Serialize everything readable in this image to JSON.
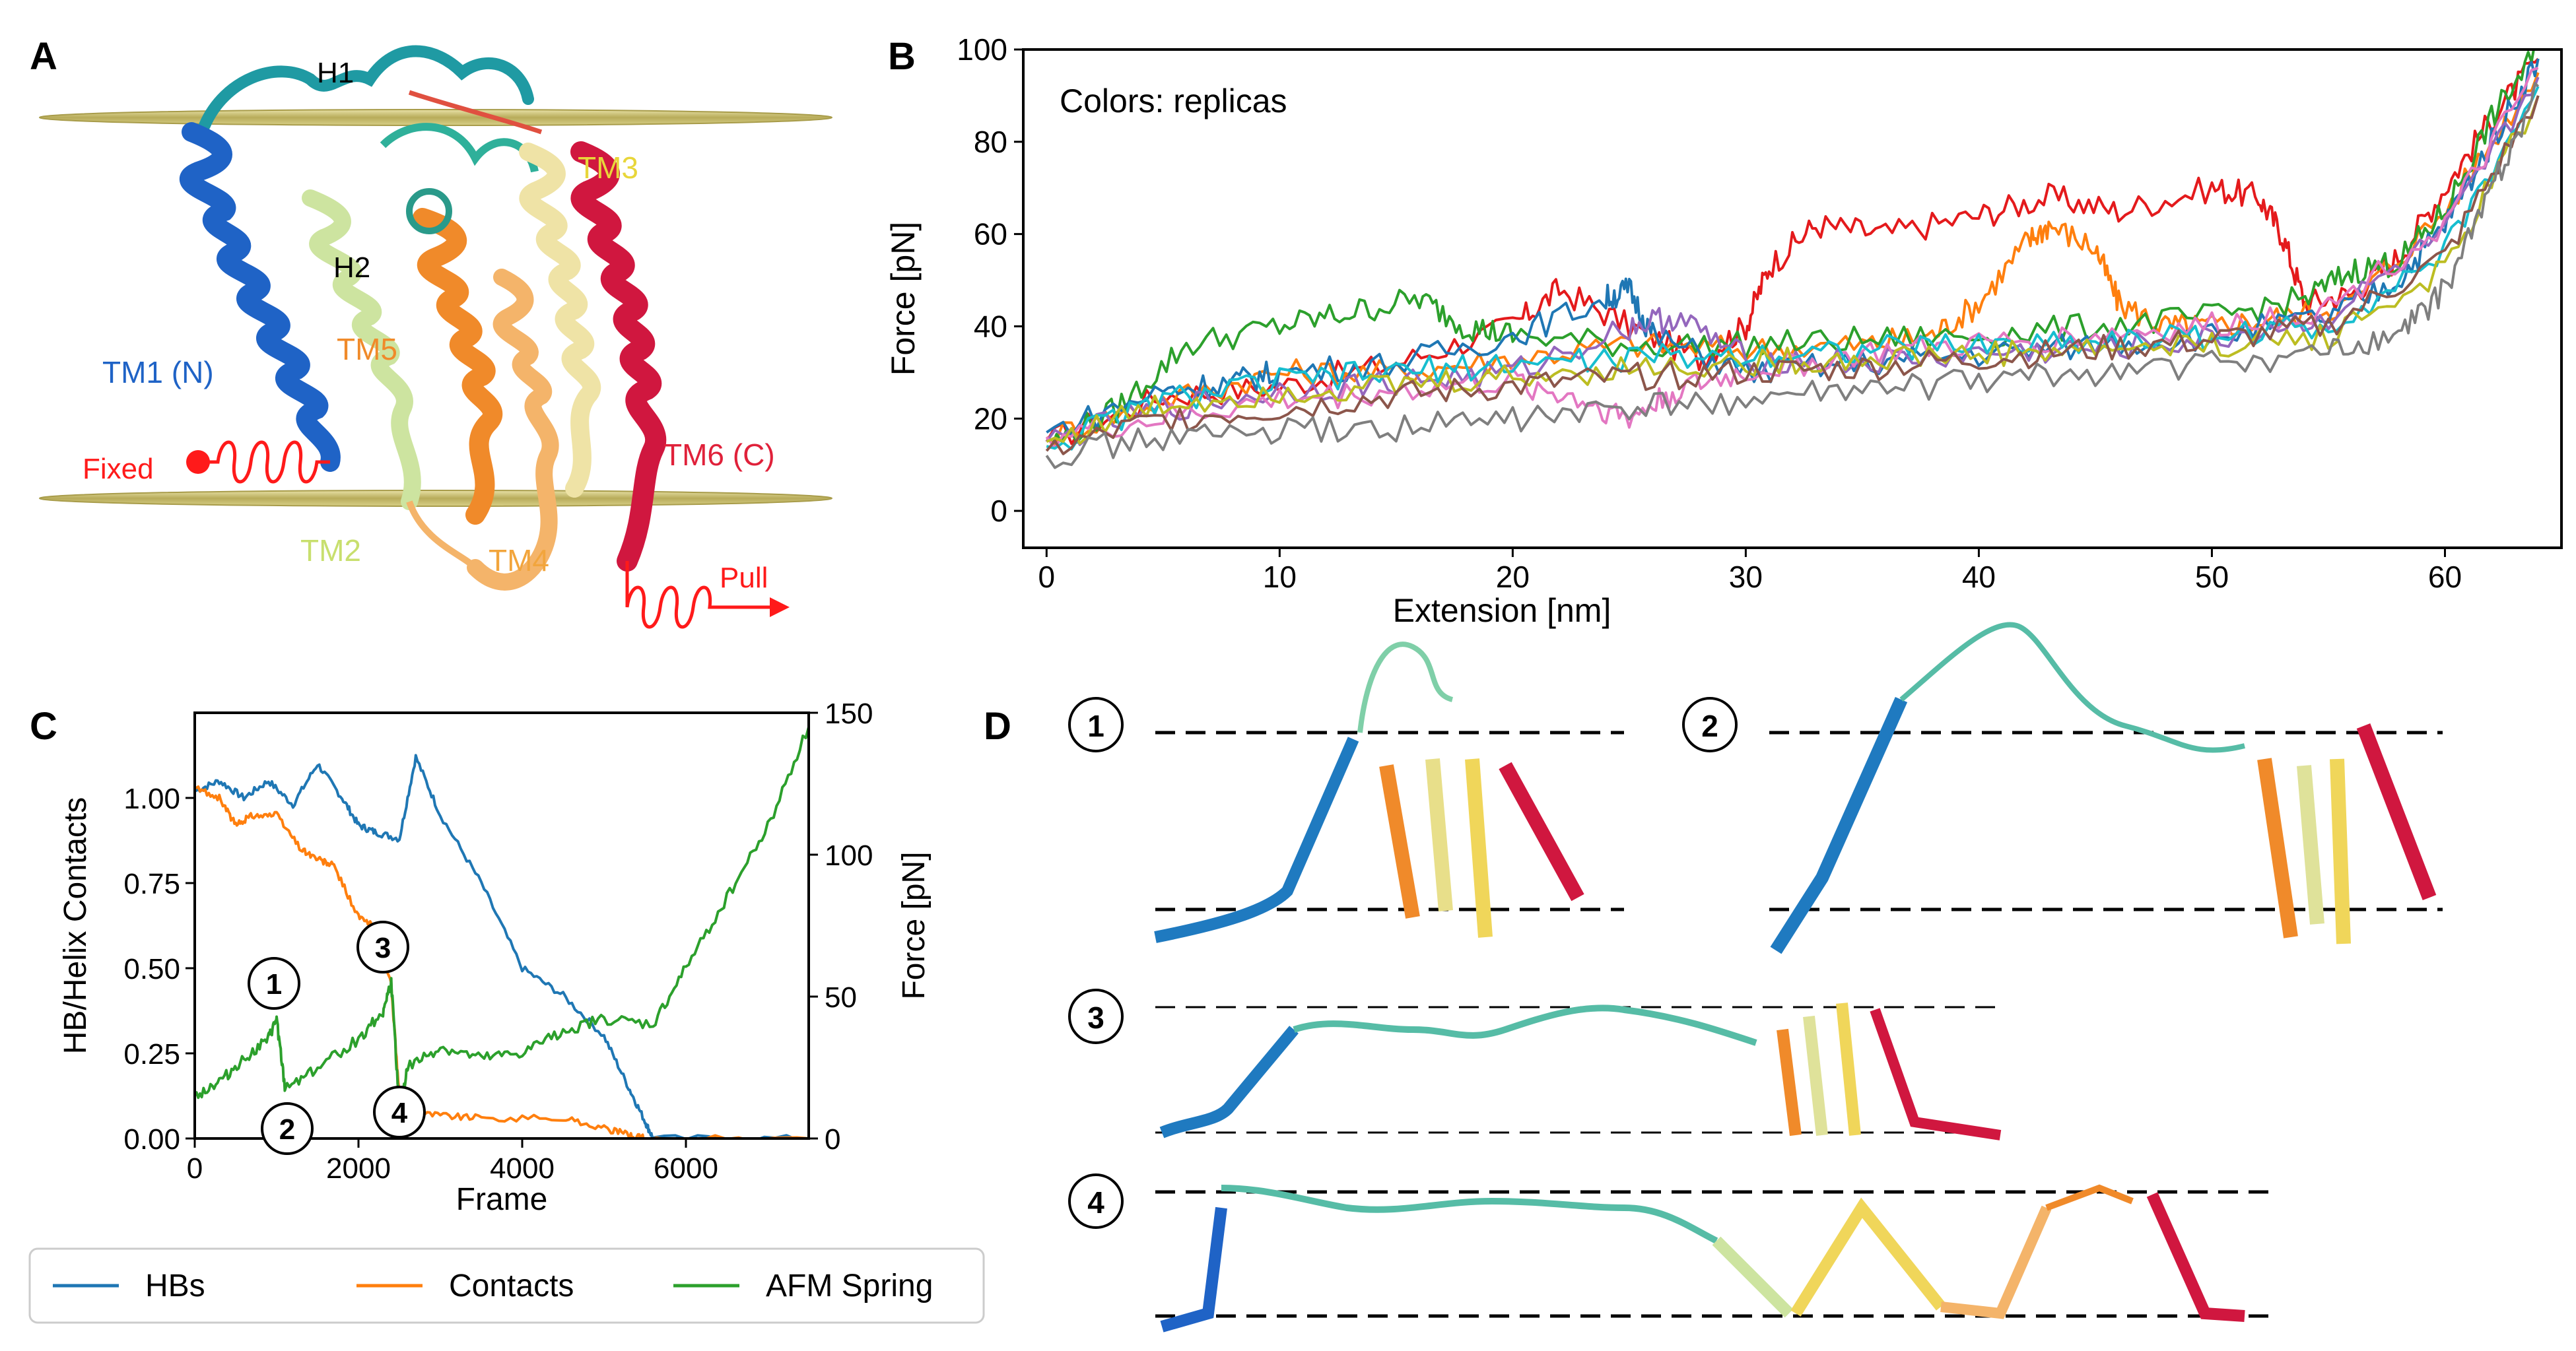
{
  "panels": {
    "a": {
      "letter": "A",
      "labels": {
        "h1": "H1",
        "h2": "H2",
        "tm1": "TM1 (N)",
        "tm2": "TM2",
        "tm3": "TM3",
        "tm4": "TM4",
        "tm5": "TM5",
        "tm6": "TM6 (C)",
        "fixed": "Fixed",
        "pull": "Pull"
      },
      "colors": {
        "tm1": "#1f63c6",
        "tm2": "#cde46f",
        "tm3": "#e8d63a",
        "tm4": "#f2a53c",
        "tm5": "#f08a2a",
        "tm6": "#e0213a",
        "red": "#ff1a1a",
        "membrane": "#c9bd6a"
      }
    },
    "b": {
      "letter": "B",
      "annotation": "Colors: replicas"
    },
    "c": {
      "letter": "C",
      "markers": [
        "1",
        "2",
        "3",
        "4"
      ]
    },
    "d": {
      "letter": "D",
      "snapshots": [
        "1",
        "2",
        "3",
        "4"
      ]
    }
  },
  "chart_data": [
    {
      "type": "line",
      "id": "B",
      "title": "",
      "annotation": "Colors: replicas",
      "xlabel": "Extension [nm]",
      "ylabel": "Force [pN]",
      "xlim": [
        -1,
        65
      ],
      "ylim": [
        -8,
        100
      ],
      "xticks": [
        0,
        10,
        20,
        30,
        40,
        50,
        60
      ],
      "yticks": [
        0,
        20,
        40,
        60,
        80,
        100
      ],
      "series": [
        {
          "name": "replica-red",
          "color": "#e41a1c",
          "x": [
            0,
            5,
            10,
            15,
            20,
            22,
            25,
            28,
            30,
            31,
            33,
            36,
            40,
            43,
            46,
            50,
            52,
            53,
            54,
            56,
            58,
            60,
            62,
            64
          ],
          "y": [
            15,
            25,
            27,
            32,
            40,
            48,
            40,
            33,
            40,
            53,
            62,
            60,
            64,
            68,
            65,
            70,
            68,
            60,
            45,
            47,
            55,
            70,
            85,
            98
          ]
        },
        {
          "name": "replica-orange",
          "color": "#ff7f0e",
          "x": [
            0,
            5,
            10,
            15,
            20,
            25,
            30,
            35,
            38,
            40,
            42,
            43,
            45,
            46,
            48,
            50,
            53,
            56,
            60,
            64
          ],
          "y": [
            16,
            24,
            30,
            30,
            33,
            36,
            35,
            36,
            38,
            45,
            58,
            62,
            57,
            45,
            40,
            40,
            42,
            45,
            65,
            95
          ]
        },
        {
          "name": "replica-green",
          "color": "#2ca02c",
          "x": [
            0,
            3,
            6,
            10,
            13,
            16,
            18,
            20,
            25,
            30,
            35,
            40,
            45,
            50,
            54,
            56,
            58,
            60,
            62,
            64
          ],
          "y": [
            14,
            22,
            36,
            40,
            43,
            46,
            40,
            38,
            36,
            36,
            37,
            38,
            40,
            42,
            46,
            52,
            54,
            65,
            85,
            100
          ]
        },
        {
          "name": "replica-blue",
          "color": "#1f77b4",
          "x": [
            0,
            5,
            8,
            10,
            15,
            20,
            24,
            25,
            26,
            30,
            35,
            40,
            45,
            50,
            55,
            58,
            60,
            62,
            64
          ],
          "y": [
            17,
            26,
            28,
            30,
            32,
            38,
            46,
            48,
            38,
            30,
            32,
            34,
            36,
            38,
            42,
            50,
            62,
            80,
            98
          ]
        },
        {
          "name": "replica-purple",
          "color": "#9467bd",
          "x": [
            0,
            5,
            10,
            15,
            20,
            25,
            27,
            30,
            35,
            40,
            45,
            50,
            55,
            60,
            64
          ],
          "y": [
            15,
            22,
            26,
            28,
            30,
            40,
            42,
            33,
            32,
            34,
            35,
            37,
            42,
            60,
            94
          ]
        },
        {
          "name": "replica-pink",
          "color": "#e377c2",
          "x": [
            0,
            5,
            10,
            15,
            20,
            23,
            25,
            27,
            30,
            35,
            40,
            45,
            50,
            55,
            60,
            64
          ],
          "y": [
            16,
            20,
            24,
            26,
            28,
            24,
            20,
            26,
            30,
            34,
            36,
            38,
            40,
            44,
            62,
            96
          ]
        },
        {
          "name": "replica-cyan",
          "color": "#17becf",
          "x": [
            0,
            5,
            10,
            15,
            20,
            25,
            30,
            35,
            40,
            45,
            50,
            55,
            60,
            64
          ],
          "y": [
            14,
            24,
            28,
            30,
            32,
            33,
            34,
            35,
            36,
            37,
            38,
            40,
            56,
            92
          ]
        },
        {
          "name": "replica-olive",
          "color": "#bcbd22",
          "x": [
            0,
            5,
            10,
            15,
            20,
            25,
            30,
            35,
            40,
            45,
            50,
            55,
            60,
            64
          ],
          "y": [
            15,
            23,
            26,
            27,
            29,
            31,
            32,
            33,
            34,
            35,
            36,
            38,
            52,
            90
          ]
        },
        {
          "name": "replica-brown",
          "color": "#8c564b",
          "x": [
            0,
            5,
            10,
            15,
            20,
            25,
            30,
            35,
            40,
            45,
            50,
            55,
            60,
            64
          ],
          "y": [
            13,
            20,
            22,
            25,
            27,
            29,
            30,
            31,
            33,
            35,
            37,
            40,
            55,
            90
          ]
        },
        {
          "name": "replica-gray",
          "color": "#7f7f7f",
          "x": [
            0,
            5,
            10,
            15,
            20,
            25,
            30,
            35,
            40,
            45,
            50,
            55,
            58,
            60,
            62,
            64
          ],
          "y": [
            12,
            16,
            17,
            18,
            20,
            22,
            24,
            26,
            28,
            30,
            32,
            34,
            38,
            48,
            70,
            92
          ]
        }
      ]
    },
    {
      "type": "line",
      "id": "C",
      "xlabel": "Frame",
      "ylabel": "HB/Helix Contacts",
      "y2label": "Force [pN]",
      "xlim": [
        0,
        7500
      ],
      "ylim": [
        0,
        1.25
      ],
      "y2lim": [
        0,
        150
      ],
      "xticks": [
        0,
        2000,
        4000,
        6000
      ],
      "yticks": [
        0.0,
        0.25,
        0.5,
        0.75,
        1.0
      ],
      "yticklabels": [
        "0.00",
        "0.25",
        "0.50",
        "0.75",
        "1.00"
      ],
      "y2ticks": [
        0,
        50,
        100,
        150
      ],
      "legend": {
        "position": "bottom",
        "entries": [
          "HBs",
          "Contacts",
          "AFM Spring"
        ]
      },
      "series": [
        {
          "name": "HBs",
          "axis": "left",
          "color": "#1f77b4",
          "x": [
            0,
            300,
            600,
            900,
            1200,
            1500,
            1800,
            2000,
            2200,
            2500,
            2700,
            3000,
            3500,
            4000,
            4500,
            5000,
            5300,
            5500,
            5600,
            7500
          ],
          "y": [
            1.02,
            1.05,
            1.0,
            1.05,
            0.98,
            1.1,
            1.0,
            0.92,
            0.9,
            0.88,
            1.12,
            0.95,
            0.75,
            0.5,
            0.42,
            0.3,
            0.15,
            0.05,
            0.0,
            0.0
          ]
        },
        {
          "name": "Contacts",
          "axis": "left",
          "color": "#ff7f0e",
          "x": [
            0,
            300,
            500,
            700,
            1000,
            1300,
            1500,
            1700,
            2000,
            2200,
            2400,
            2500,
            2550,
            3000,
            3500,
            4500,
            5000,
            5300,
            5500,
            7500
          ],
          "y": [
            1.03,
            1.0,
            0.92,
            0.95,
            0.95,
            0.85,
            0.82,
            0.8,
            0.65,
            0.62,
            0.45,
            0.12,
            0.08,
            0.07,
            0.06,
            0.06,
            0.03,
            0.01,
            0.0,
            0.0
          ]
        },
        {
          "name": "AFM Spring",
          "axis": "right",
          "color": "#2ca02c",
          "x": [
            0,
            300,
            600,
            900,
            1000,
            1100,
            1500,
            2000,
            2300,
            2400,
            2500,
            2600,
            3000,
            3500,
            4000,
            4500,
            5000,
            5600,
            6000,
            6500,
            7000,
            7500
          ],
          "y": [
            15,
            20,
            28,
            35,
            42,
            18,
            25,
            35,
            45,
            55,
            10,
            25,
            32,
            28,
            30,
            38,
            42,
            40,
            60,
            85,
            110,
            145
          ]
        }
      ],
      "markers": [
        {
          "label": "1",
          "x": 800,
          "y": 0.45
        },
        {
          "label": "2",
          "x": 1000,
          "y": 0.0
        },
        {
          "label": "3",
          "x": 2350,
          "y": 0.56
        },
        {
          "label": "4",
          "x": 2400,
          "y": 0.08
        }
      ]
    }
  ]
}
